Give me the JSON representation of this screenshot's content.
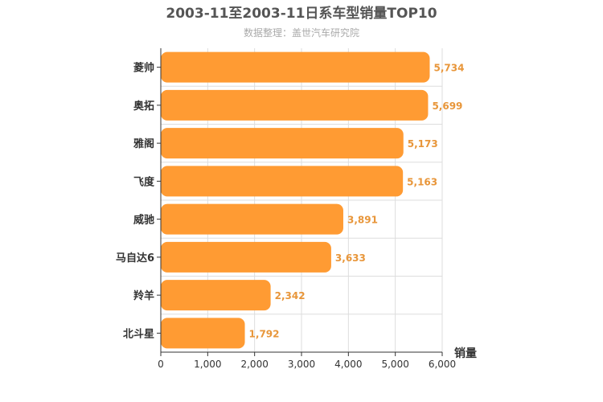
{
  "chart_data": {
    "type": "bar",
    "orientation": "horizontal",
    "title": "2003-11至2003-11日系车型销量TOP10",
    "subtitle": "数据整理：盖世汽车研究院",
    "xlabel": "销量",
    "ylabel": "",
    "categories": [
      "菱帅",
      "奥拓",
      "雅阁",
      "飞度",
      "威驰",
      "马自达6",
      "羚羊",
      "北斗星"
    ],
    "values": [
      5734,
      5699,
      5173,
      5163,
      3891,
      3633,
      2342,
      1792
    ],
    "value_labels": [
      "5,734",
      "5,699",
      "5,173",
      "5,163",
      "3,891",
      "3,633",
      "2,342",
      "1,792"
    ],
    "xlim": [
      0,
      6000
    ],
    "ticks": [
      "0",
      "1,000",
      "2,000",
      "3,000",
      "4,000",
      "5,000",
      "6,000"
    ],
    "grid": true,
    "bar_color": "#ff9b33",
    "label_color": "#e8963a"
  }
}
